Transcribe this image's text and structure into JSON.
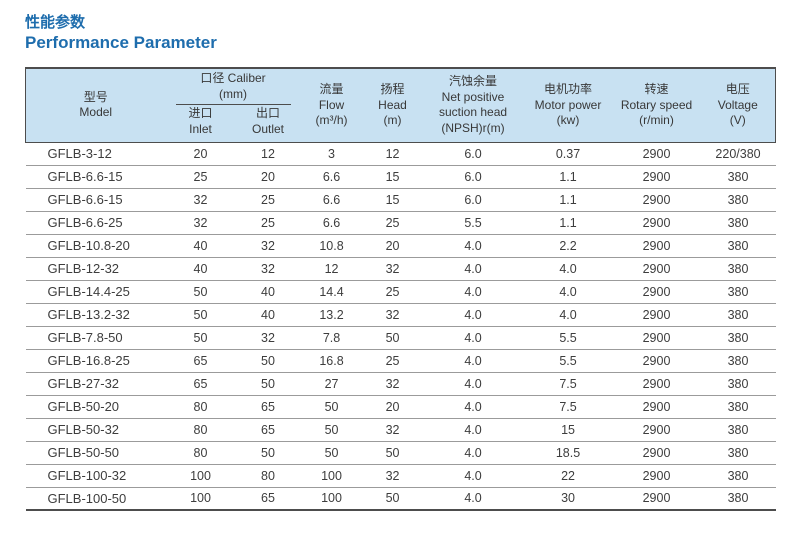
{
  "colors": {
    "accent": "#1e6dad",
    "header_bg": "#c8e1f2",
    "border_dark": "#4d4d4d",
    "row_line": "#9b9b9b",
    "text": "#3d3d3d"
  },
  "header": {
    "title_zh": "性能参数",
    "title_en": "Performance Parameter"
  },
  "table": {
    "header": {
      "model": {
        "zh": "型号",
        "en": "Model"
      },
      "caliber": {
        "label": "口径 Caliber",
        "unit": "(mm)",
        "inlet": {
          "zh": "进口",
          "en": "Inlet"
        },
        "outlet": {
          "zh": "出口",
          "en": "Outlet"
        }
      },
      "flow": {
        "zh": "流量",
        "en": "Flow",
        "unit": "(m³/h)"
      },
      "head": {
        "zh": "扬程",
        "en": "Head",
        "unit": "(m)"
      },
      "npsh": {
        "zh": "汽蚀余量",
        "en1": "Net positive",
        "en2": "suction head",
        "unit": "(NPSH)r(m)"
      },
      "motor_power": {
        "zh": "电机功率",
        "en": "Motor power",
        "unit": "(kw)"
      },
      "rotary_speed": {
        "zh": "转速",
        "en": "Rotary speed",
        "unit": "(r/min)"
      },
      "voltage": {
        "zh": "电压",
        "en": "Voltage",
        "unit": "(V)"
      }
    },
    "column_keys": [
      "model",
      "inlet",
      "outlet",
      "flow",
      "head",
      "npsh",
      "motor_power",
      "rotary_speed",
      "voltage"
    ],
    "rows": [
      {
        "model": "GFLB-3-12",
        "inlet": "20",
        "outlet": "12",
        "flow": "3",
        "head": "12",
        "npsh": "6.0",
        "motor_power": "0.37",
        "rotary_speed": "2900",
        "voltage": "220/380"
      },
      {
        "model": "GFLB-6.6-15",
        "inlet": "25",
        "outlet": "20",
        "flow": "6.6",
        "head": "15",
        "npsh": "6.0",
        "motor_power": "1.1",
        "rotary_speed": "2900",
        "voltage": "380"
      },
      {
        "model": "GFLB-6.6-15",
        "inlet": "32",
        "outlet": "25",
        "flow": "6.6",
        "head": "15",
        "npsh": "6.0",
        "motor_power": "1.1",
        "rotary_speed": "2900",
        "voltage": "380"
      },
      {
        "model": "GFLB-6.6-25",
        "inlet": "32",
        "outlet": "25",
        "flow": "6.6",
        "head": "25",
        "npsh": "5.5",
        "motor_power": "1.1",
        "rotary_speed": "2900",
        "voltage": "380"
      },
      {
        "model": "GFLB-10.8-20",
        "inlet": "40",
        "outlet": "32",
        "flow": "10.8",
        "head": "20",
        "npsh": "4.0",
        "motor_power": "2.2",
        "rotary_speed": "2900",
        "voltage": "380"
      },
      {
        "model": "GFLB-12-32",
        "inlet": "40",
        "outlet": "32",
        "flow": "12",
        "head": "32",
        "npsh": "4.0",
        "motor_power": "4.0",
        "rotary_speed": "2900",
        "voltage": "380"
      },
      {
        "model": "GFLB-14.4-25",
        "inlet": "50",
        "outlet": "40",
        "flow": "14.4",
        "head": "25",
        "npsh": "4.0",
        "motor_power": "4.0",
        "rotary_speed": "2900",
        "voltage": "380"
      },
      {
        "model": "GFLB-13.2-32",
        "inlet": "50",
        "outlet": "40",
        "flow": "13.2",
        "head": "32",
        "npsh": "4.0",
        "motor_power": "4.0",
        "rotary_speed": "2900",
        "voltage": "380"
      },
      {
        "model": "GFLB-7.8-50",
        "inlet": "50",
        "outlet": "32",
        "flow": "7.8",
        "head": "50",
        "npsh": "4.0",
        "motor_power": "5.5",
        "rotary_speed": "2900",
        "voltage": "380"
      },
      {
        "model": "GFLB-16.8-25",
        "inlet": "65",
        "outlet": "50",
        "flow": "16.8",
        "head": "25",
        "npsh": "4.0",
        "motor_power": "5.5",
        "rotary_speed": "2900",
        "voltage": "380"
      },
      {
        "model": "GFLB-27-32",
        "inlet": "65",
        "outlet": "50",
        "flow": "27",
        "head": "32",
        "npsh": "4.0",
        "motor_power": "7.5",
        "rotary_speed": "2900",
        "voltage": "380"
      },
      {
        "model": "GFLB-50-20",
        "inlet": "80",
        "outlet": "65",
        "flow": "50",
        "head": "20",
        "npsh": "4.0",
        "motor_power": "7.5",
        "rotary_speed": "2900",
        "voltage": "380"
      },
      {
        "model": "GFLB-50-32",
        "inlet": "80",
        "outlet": "65",
        "flow": "50",
        "head": "32",
        "npsh": "4.0",
        "motor_power": "15",
        "rotary_speed": "2900",
        "voltage": "380"
      },
      {
        "model": "GFLB-50-50",
        "inlet": "80",
        "outlet": "50",
        "flow": "50",
        "head": "50",
        "npsh": "4.0",
        "motor_power": "18.5",
        "rotary_speed": "2900",
        "voltage": "380"
      },
      {
        "model": "GFLB-100-32",
        "inlet": "100",
        "outlet": "80",
        "flow": "100",
        "head": "32",
        "npsh": "4.0",
        "motor_power": "22",
        "rotary_speed": "2900",
        "voltage": "380"
      },
      {
        "model": "GFLB-100-50",
        "inlet": "100",
        "outlet": "65",
        "flow": "100",
        "head": "50",
        "npsh": "4.0",
        "motor_power": "30",
        "rotary_speed": "2900",
        "voltage": "380"
      }
    ]
  }
}
